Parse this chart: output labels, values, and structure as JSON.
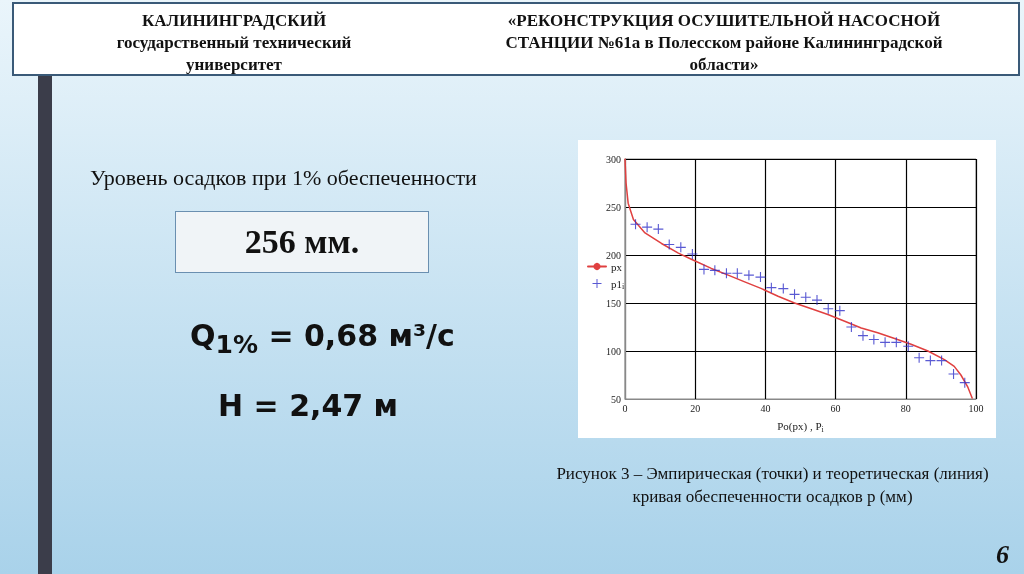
{
  "chart_data": {
    "type": "scatter",
    "title": "«РЕКОНСТРУКЦИЯ ОСУШИТЕЛЬНОЙ НАСОСНОЙ СТАНЦИИ №61а в Полесском районе Калининградской области»",
    "subtitle": "КАЛИНИНГРАДСКИЙ государственный технический университет",
    "xlabel": "Po(px) , P$_{i}$",
    "annotations": [
      "Уровень осадков при 1% обеспеченности",
      "256 мм.",
      "Q$_{1%}$ = 0,68 м³/с",
      "H = 2,47 м",
      "Рисунок 3 – Эмпирическая (точки) и теоретическая (линия) кривая обеспеченности осадков р (мм)",
      "6"
    ],
    "series": [
      {
        "name": "px",
        "type": "line",
        "color": "#e04040",
        "marker": "none",
        "line_style": "solid",
        "x": [
          0,
          0.3,
          0.9,
          2.4,
          5.7,
          10.4,
          15.2,
          19.2,
          24.6,
          29.4,
          34.1,
          38.9,
          43.6,
          48.3,
          53.1,
          57.8,
          62.6,
          67.3,
          72,
          76.8,
          81.5,
          86.3,
          91,
          93.8,
          95.7,
          97.6,
          98.9
        ],
        "values": [
          300,
          275,
          254,
          237,
          223,
          212,
          202,
          195,
          186,
          179,
          172,
          165,
          157,
          150,
          144,
          138,
          131,
          124,
          119,
          113,
          107,
          100,
          91,
          84,
          75,
          63,
          51
        ]
      },
      {
        "name": "p1$_{i}$",
        "type": "scatter",
        "color": "#3030c8",
        "marker": "cross",
        "x": [
          3.0,
          6.3,
          9.5,
          12.6,
          15.9,
          19.2,
          22.5,
          25.6,
          28.9,
          32.0,
          35.3,
          38.6,
          41.7,
          45.1,
          48.3,
          51.5,
          54.7,
          57.9,
          61.2,
          64.5,
          67.8,
          70.9,
          74.1,
          77.3,
          80.7,
          83.8,
          87.0,
          90.2,
          93.6,
          96.8
        ],
        "values": [
          232,
          229,
          227,
          211,
          208,
          201,
          185,
          184,
          181,
          181,
          179,
          177,
          166,
          165,
          159,
          156,
          153,
          144,
          142,
          125,
          116,
          112,
          109,
          109,
          105,
          93,
          90,
          90,
          76,
          67
        ]
      }
    ],
    "xlim": [
      0,
      100
    ],
    "xticks": [
      0,
      20,
      40,
      60,
      80,
      100
    ],
    "ylim": [
      50,
      300
    ],
    "yticks": [
      50,
      100,
      150,
      200,
      250,
      300
    ],
    "grid": true,
    "legend": "left"
  }
}
